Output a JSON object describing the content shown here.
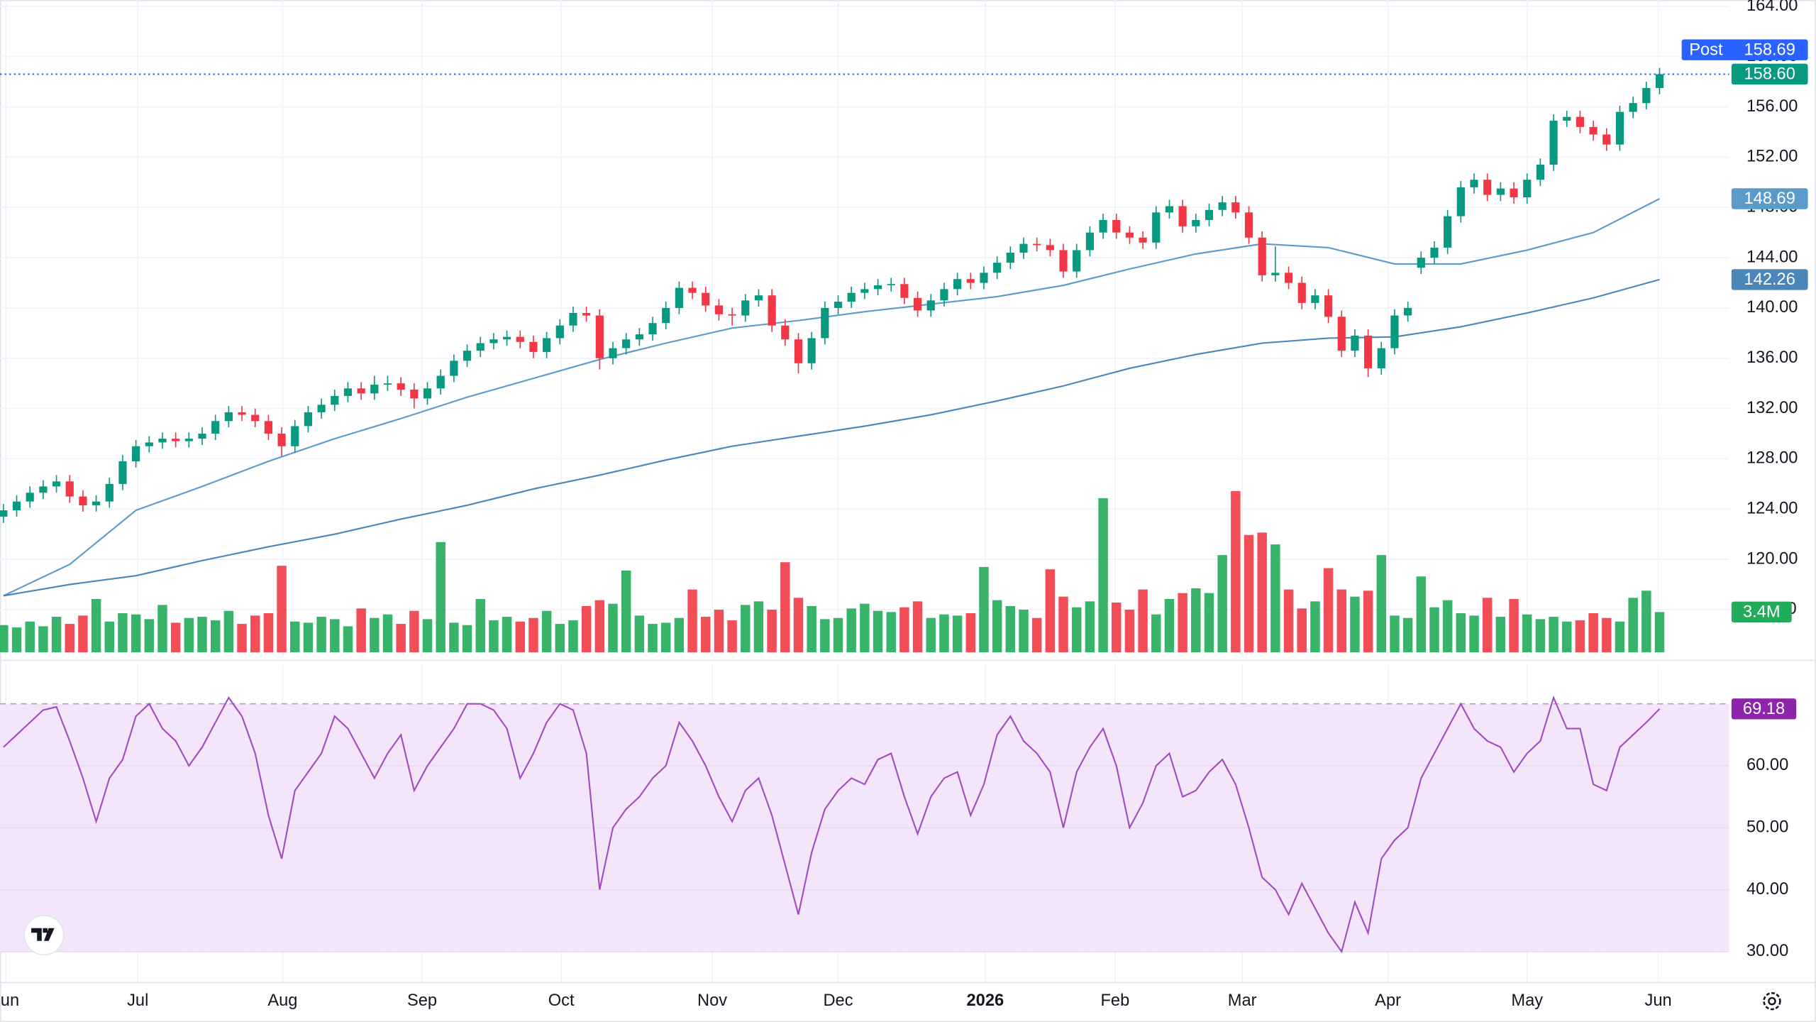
{
  "chart_data": [
    {
      "type": "candlestick",
      "up_color": "#089981",
      "down_color": "#f23645",
      "xlim": [
        -0.26,
        130.25
      ],
      "xticks": [
        {
          "value": 0.17,
          "label": "Jun"
        },
        {
          "value": 10.14,
          "label": "Jul"
        },
        {
          "value": 21.07,
          "label": "Aug"
        },
        {
          "value": 31.6,
          "label": "Sep"
        },
        {
          "value": 42.1,
          "label": "Oct"
        },
        {
          "value": 53.5,
          "label": "Nov"
        },
        {
          "value": 63.0,
          "label": "Dec"
        },
        {
          "value": 74.1,
          "label": "2026"
        },
        {
          "value": 83.9,
          "label": "Feb"
        },
        {
          "value": 93.5,
          "label": "Mar"
        },
        {
          "value": 104.5,
          "label": "Apr"
        },
        {
          "value": 115.0,
          "label": "May"
        },
        {
          "value": 124.9,
          "label": "Jun"
        }
      ],
      "ylim": [
        112.6,
        164.5
      ],
      "yticks": [
        {
          "value": 116,
          "label": "116.00"
        },
        {
          "value": 120,
          "label": "120.00"
        },
        {
          "value": 124,
          "label": "124.00"
        },
        {
          "value": 128,
          "label": "128.00"
        },
        {
          "value": 132,
          "label": "132.00"
        },
        {
          "value": 136,
          "label": "136.00"
        },
        {
          "value": 140,
          "label": "140.00"
        },
        {
          "value": 144,
          "label": "144.00"
        },
        {
          "value": 148,
          "label": "148.00"
        },
        {
          "value": 152,
          "label": "152.00"
        },
        {
          "value": 156,
          "label": "156.00"
        },
        {
          "value": 160,
          "label": "160.00"
        },
        {
          "value": 164,
          "label": "164.00"
        }
      ],
      "grid": true,
      "ohlc": [
        [
          123.4,
          124.4,
          122.9,
          123.9
        ],
        [
          123.9,
          125.1,
          123.4,
          124.6
        ],
        [
          124.6,
          125.8,
          124.1,
          125.3
        ],
        [
          125.3,
          126.3,
          124.8,
          125.8
        ],
        [
          125.8,
          126.7,
          125.3,
          126.2
        ],
        [
          126.2,
          126.7,
          124.5,
          125.0
        ],
        [
          125.0,
          125.5,
          123.8,
          124.3
        ],
        [
          124.3,
          125.1,
          123.8,
          124.6
        ],
        [
          124.6,
          126.5,
          124.1,
          126.0
        ],
        [
          126.0,
          128.3,
          125.5,
          127.8
        ],
        [
          127.8,
          129.5,
          127.3,
          129.0
        ],
        [
          129.0,
          129.8,
          128.5,
          129.3
        ],
        [
          129.3,
          130.1,
          128.8,
          129.6
        ],
        [
          129.6,
          130.1,
          128.9,
          129.4
        ],
        [
          129.4,
          130.1,
          128.9,
          129.6
        ],
        [
          129.6,
          130.5,
          129.1,
          130.0
        ],
        [
          130.0,
          131.5,
          129.5,
          131.0
        ],
        [
          131.0,
          132.2,
          130.5,
          131.7
        ],
        [
          131.7,
          132.2,
          131.0,
          131.5
        ],
        [
          131.5,
          132.0,
          130.5,
          131.0
        ],
        [
          131.0,
          131.5,
          129.5,
          130.0
        ],
        [
          130.0,
          130.5,
          128.2,
          129.0
        ],
        [
          129.0,
          131.1,
          128.5,
          130.6
        ],
        [
          130.6,
          132.2,
          130.1,
          131.7
        ],
        [
          131.7,
          132.8,
          131.2,
          132.3
        ],
        [
          132.3,
          133.5,
          131.8,
          133.0
        ],
        [
          133.0,
          134.1,
          132.5,
          133.6
        ],
        [
          133.6,
          134.1,
          132.7,
          133.2
        ],
        [
          133.2,
          134.6,
          132.7,
          133.9
        ],
        [
          133.9,
          134.6,
          133.4,
          134.0
        ],
        [
          134.0,
          134.5,
          133.0,
          133.5
        ],
        [
          133.5,
          134.0,
          132.0,
          132.8
        ],
        [
          132.8,
          134.1,
          132.3,
          133.6
        ],
        [
          133.6,
          135.1,
          133.1,
          134.6
        ],
        [
          134.6,
          136.3,
          134.1,
          135.8
        ],
        [
          135.8,
          137.1,
          135.3,
          136.6
        ],
        [
          136.6,
          137.7,
          136.1,
          137.2
        ],
        [
          137.2,
          138.0,
          136.7,
          137.5
        ],
        [
          137.5,
          138.2,
          137.0,
          137.7
        ],
        [
          137.7,
          138.2,
          136.8,
          137.3
        ],
        [
          137.3,
          137.8,
          136.0,
          136.5
        ],
        [
          136.5,
          138.1,
          136.0,
          137.6
        ],
        [
          137.6,
          139.1,
          137.1,
          138.6
        ],
        [
          138.6,
          140.1,
          138.1,
          139.6
        ],
        [
          139.6,
          140.1,
          138.9,
          139.4
        ],
        [
          139.4,
          139.9,
          135.1,
          136.0
        ],
        [
          136.0,
          137.3,
          135.5,
          136.8
        ],
        [
          136.8,
          138.0,
          136.3,
          137.5
        ],
        [
          137.5,
          138.4,
          137.0,
          137.9
        ],
        [
          137.9,
          139.3,
          137.4,
          138.8
        ],
        [
          138.8,
          140.5,
          138.3,
          140.0
        ],
        [
          140.0,
          142.1,
          139.5,
          141.6
        ],
        [
          141.6,
          142.1,
          140.7,
          141.2
        ],
        [
          141.2,
          141.7,
          139.7,
          140.2
        ],
        [
          140.2,
          140.7,
          139.0,
          139.5
        ],
        [
          139.5,
          140.0,
          138.6,
          139.4
        ],
        [
          139.4,
          141.1,
          138.9,
          140.6
        ],
        [
          140.6,
          141.5,
          140.1,
          141.0
        ],
        [
          141.0,
          141.5,
          138.1,
          138.6
        ],
        [
          138.6,
          139.1,
          137.0,
          137.5
        ],
        [
          137.5,
          138.0,
          134.8,
          135.6
        ],
        [
          135.6,
          138.1,
          135.1,
          137.6
        ],
        [
          137.6,
          140.5,
          137.1,
          140.0
        ],
        [
          140.0,
          141.0,
          139.5,
          140.5
        ],
        [
          140.5,
          141.7,
          140.0,
          141.2
        ],
        [
          141.2,
          142.0,
          140.7,
          141.5
        ],
        [
          141.5,
          142.3,
          141.0,
          141.8
        ],
        [
          141.8,
          142.4,
          141.3,
          141.9
        ],
        [
          141.9,
          142.4,
          140.3,
          140.8
        ],
        [
          140.8,
          141.3,
          139.3,
          139.8
        ],
        [
          139.8,
          141.1,
          139.3,
          140.6
        ],
        [
          140.6,
          142.0,
          140.1,
          141.5
        ],
        [
          141.5,
          142.8,
          141.0,
          142.3
        ],
        [
          142.3,
          142.8,
          141.5,
          142.0
        ],
        [
          142.0,
          143.3,
          141.5,
          142.8
        ],
        [
          142.8,
          144.1,
          142.3,
          143.6
        ],
        [
          143.6,
          144.9,
          143.1,
          144.4
        ],
        [
          144.4,
          145.6,
          143.9,
          145.1
        ],
        [
          145.1,
          145.6,
          144.5,
          145.0
        ],
        [
          145.0,
          145.5,
          144.1,
          144.6
        ],
        [
          144.6,
          145.1,
          142.4,
          142.9
        ],
        [
          142.9,
          145.1,
          142.4,
          144.6
        ],
        [
          144.6,
          146.5,
          144.1,
          146.0
        ],
        [
          146.0,
          147.5,
          145.5,
          147.0
        ],
        [
          147.0,
          147.5,
          145.5,
          146.0
        ],
        [
          146.0,
          146.5,
          145.1,
          145.6
        ],
        [
          145.6,
          146.1,
          144.7,
          145.2
        ],
        [
          145.2,
          148.1,
          144.7,
          147.6
        ],
        [
          147.6,
          148.6,
          147.1,
          148.1
        ],
        [
          148.1,
          148.6,
          146.0,
          146.5
        ],
        [
          146.5,
          147.5,
          146.0,
          147.0
        ],
        [
          147.0,
          148.3,
          146.5,
          147.8
        ],
        [
          147.8,
          148.9,
          147.3,
          148.4
        ],
        [
          148.4,
          148.9,
          147.1,
          147.6
        ],
        [
          147.6,
          148.1,
          145.1,
          145.6
        ],
        [
          145.6,
          146.1,
          142.1,
          142.6
        ],
        [
          142.6,
          144.9,
          142.1,
          142.8
        ],
        [
          142.8,
          143.3,
          141.5,
          142.0
        ],
        [
          142.0,
          142.5,
          139.9,
          140.4
        ],
        [
          140.4,
          141.5,
          139.9,
          141.0
        ],
        [
          141.0,
          141.5,
          138.8,
          139.3
        ],
        [
          139.3,
          139.8,
          136.1,
          136.6
        ],
        [
          136.6,
          138.3,
          136.1,
          137.8
        ],
        [
          137.8,
          138.3,
          134.5,
          135.2
        ],
        [
          135.2,
          137.3,
          134.7,
          136.8
        ],
        [
          136.8,
          139.9,
          136.3,
          139.4
        ],
        [
          139.4,
          140.5,
          138.9,
          140.0
        ],
        [
          143.2,
          144.5,
          142.7,
          144.0
        ],
        [
          144.0,
          145.3,
          143.5,
          144.8
        ],
        [
          144.8,
          147.8,
          144.3,
          147.3
        ],
        [
          147.3,
          150.1,
          146.8,
          149.6
        ],
        [
          149.6,
          150.7,
          149.1,
          150.2
        ],
        [
          150.2,
          150.7,
          148.5,
          149.0
        ],
        [
          149.0,
          150.0,
          148.5,
          149.5
        ],
        [
          149.5,
          150.0,
          148.3,
          148.8
        ],
        [
          148.8,
          150.7,
          148.3,
          150.2
        ],
        [
          150.2,
          151.9,
          149.7,
          151.4
        ],
        [
          151.4,
          155.4,
          150.9,
          154.9
        ],
        [
          154.9,
          155.7,
          154.4,
          155.2
        ],
        [
          155.2,
          155.7,
          153.9,
          154.4
        ],
        [
          154.4,
          154.9,
          153.3,
          153.8
        ],
        [
          153.8,
          154.3,
          152.5,
          153.0
        ],
        [
          153.0,
          156.1,
          152.5,
          155.6
        ],
        [
          155.6,
          156.8,
          155.1,
          156.3
        ],
        [
          156.3,
          158.0,
          155.8,
          157.5
        ],
        [
          157.5,
          159.1,
          157.0,
          158.6
        ]
      ],
      "series": [
        {
          "type": "line",
          "color": "#5b9bc9",
          "x": [
            0,
            5,
            10,
            15,
            20,
            25,
            30,
            35,
            40,
            45,
            50,
            55,
            60,
            65,
            70,
            75,
            80,
            85,
            90,
            95,
            100,
            105,
            110,
            115,
            120,
            125
          ],
          "values": [
            117.1,
            119.6,
            123.9,
            125.8,
            127.8,
            129.6,
            131.2,
            132.9,
            134.4,
            135.9,
            137.2,
            138.4,
            139.0,
            139.7,
            140.3,
            140.9,
            141.8,
            143.1,
            144.3,
            145.1,
            144.8,
            143.5,
            143.5,
            144.6,
            146.0,
            148.69
          ]
        },
        {
          "type": "line",
          "color": "#4a86b8",
          "x": [
            0,
            5,
            10,
            15,
            20,
            25,
            30,
            35,
            40,
            45,
            50,
            55,
            60,
            65,
            70,
            75,
            80,
            85,
            90,
            95,
            100,
            105,
            110,
            115,
            120,
            125
          ],
          "values": [
            117.1,
            118.0,
            118.7,
            119.9,
            121.0,
            122.0,
            123.2,
            124.3,
            125.6,
            126.7,
            127.9,
            129.0,
            129.8,
            130.6,
            131.5,
            132.6,
            133.8,
            135.2,
            136.3,
            137.2,
            137.6,
            137.7,
            138.5,
            139.6,
            140.8,
            142.26
          ]
        }
      ],
      "close_tag": {
        "value": 158.6,
        "label": "158.60",
        "color": "#089981"
      },
      "post_market": {
        "name": "Post",
        "value": 158.69,
        "color": "#2962ff"
      },
      "volume": {
        "ylim": [
          0,
          55
        ],
        "up_color": "#22ab5a",
        "down_color": "#ef3b45",
        "last_label": "3.4M",
        "values": [
          2.3,
          2.1,
          2.6,
          2.2,
          3.0,
          2.4,
          3.1,
          4.5,
          2.6,
          3.3,
          3.2,
          2.8,
          4.0,
          2.5,
          2.9,
          3.0,
          2.7,
          3.5,
          2.4,
          3.1,
          3.3,
          7.3,
          2.6,
          2.5,
          3.0,
          2.8,
          2.2,
          3.7,
          2.9,
          3.2,
          2.4,
          3.5,
          2.8,
          9.3,
          2.5,
          2.3,
          4.5,
          2.7,
          3.0,
          2.6,
          2.9,
          3.5,
          2.4,
          2.7,
          3.9,
          4.4,
          4.1,
          6.9,
          3.1,
          2.4,
          2.5,
          2.9,
          5.3,
          3.0,
          3.6,
          2.7,
          4.0,
          4.3,
          3.6,
          7.6,
          4.6,
          3.9,
          2.8,
          2.9,
          3.7,
          4.1,
          3.5,
          3.4,
          3.8,
          4.3,
          2.9,
          3.2,
          3.1,
          3.3,
          7.2,
          4.4,
          3.9,
          3.6,
          2.9,
          7.0,
          4.7,
          3.8,
          4.3,
          13.0,
          4.2,
          3.6,
          5.3,
          3.2,
          4.5,
          5.0,
          5.4,
          5.0,
          8.2,
          13.6,
          9.9,
          10.1,
          9.1,
          5.3,
          3.7,
          4.3,
          7.1,
          5.3,
          4.7,
          5.2,
          8.2,
          3.1,
          2.9,
          6.4,
          3.8,
          4.4,
          3.3,
          3.1,
          4.6,
          3.0,
          4.5,
          3.2,
          2.8,
          3.0,
          2.6,
          2.7,
          3.3,
          2.9,
          2.6,
          4.6,
          5.2,
          3.4
        ]
      }
    },
    {
      "type": "line",
      "color": "#a24cc2",
      "tag_color": "#8e24aa",
      "ylim": [
        25,
        75.5
      ],
      "yticks": [
        {
          "value": 30,
          "label": "30.00"
        },
        {
          "value": 40,
          "label": "40.00"
        },
        {
          "value": 50,
          "label": "50.00"
        },
        {
          "value": 60,
          "label": "60.00"
        }
      ],
      "band": [
        30,
        70
      ],
      "band_color": "#f3e6fb",
      "values": [
        63,
        65,
        67,
        69,
        69.5,
        64,
        58,
        51,
        58,
        61,
        68,
        70,
        66,
        64,
        60,
        63,
        67,
        71,
        68,
        62,
        52,
        45,
        56,
        59,
        62,
        68,
        66,
        62,
        58,
        62,
        65,
        56,
        60,
        63,
        66,
        70,
        70,
        69,
        66,
        58,
        62,
        67,
        70,
        69,
        62,
        40,
        50,
        53,
        55,
        58,
        60,
        67,
        64,
        60,
        55,
        51,
        56,
        58,
        52,
        44,
        36,
        46,
        53,
        56,
        58,
        57,
        61,
        62,
        55,
        49,
        55,
        58,
        59,
        52,
        57,
        65,
        68,
        64,
        62,
        59,
        50,
        59,
        63,
        66,
        60,
        50,
        54,
        60,
        62,
        55,
        56,
        59,
        61,
        57,
        50,
        42,
        40,
        36,
        41,
        37,
        33,
        30,
        38,
        33,
        45,
        48,
        50,
        58,
        62,
        66,
        70,
        66,
        64,
        63,
        59,
        62,
        64,
        71,
        66,
        66,
        57,
        56,
        63,
        65,
        67,
        69.18
      ]
    }
  ]
}
